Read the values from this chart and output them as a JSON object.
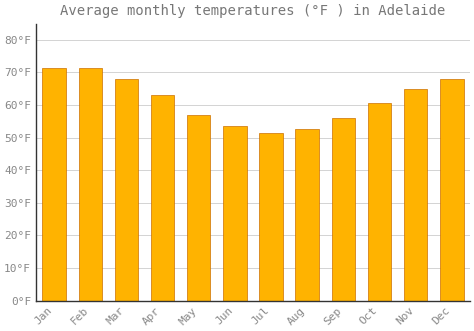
{
  "title": "Average monthly temperatures (°F ) in Adelaide",
  "months": [
    "Jan",
    "Feb",
    "Mar",
    "Apr",
    "May",
    "Jun",
    "Jul",
    "Aug",
    "Sep",
    "Oct",
    "Nov",
    "Dec"
  ],
  "values": [
    71.5,
    71.5,
    68,
    63,
    57,
    53.5,
    51.5,
    52.5,
    56,
    60.5,
    65,
    68
  ],
  "bar_color_top": "#FFB300",
  "bar_color_bottom": "#FF8C00",
  "bar_edge_color": "#CC7000",
  "background_color": "#FFFFFF",
  "grid_color": "#CCCCCC",
  "ylim": [
    0,
    85
  ],
  "yticks": [
    0,
    10,
    20,
    30,
    40,
    50,
    60,
    70,
    80
  ],
  "ytick_labels": [
    "0°F",
    "10°F",
    "20°F",
    "30°F",
    "40°F",
    "50°F",
    "60°F",
    "70°F",
    "80°F"
  ],
  "title_fontsize": 10,
  "tick_fontsize": 8,
  "text_color": "#888888",
  "bar_width": 0.65,
  "title_color": "#777777"
}
